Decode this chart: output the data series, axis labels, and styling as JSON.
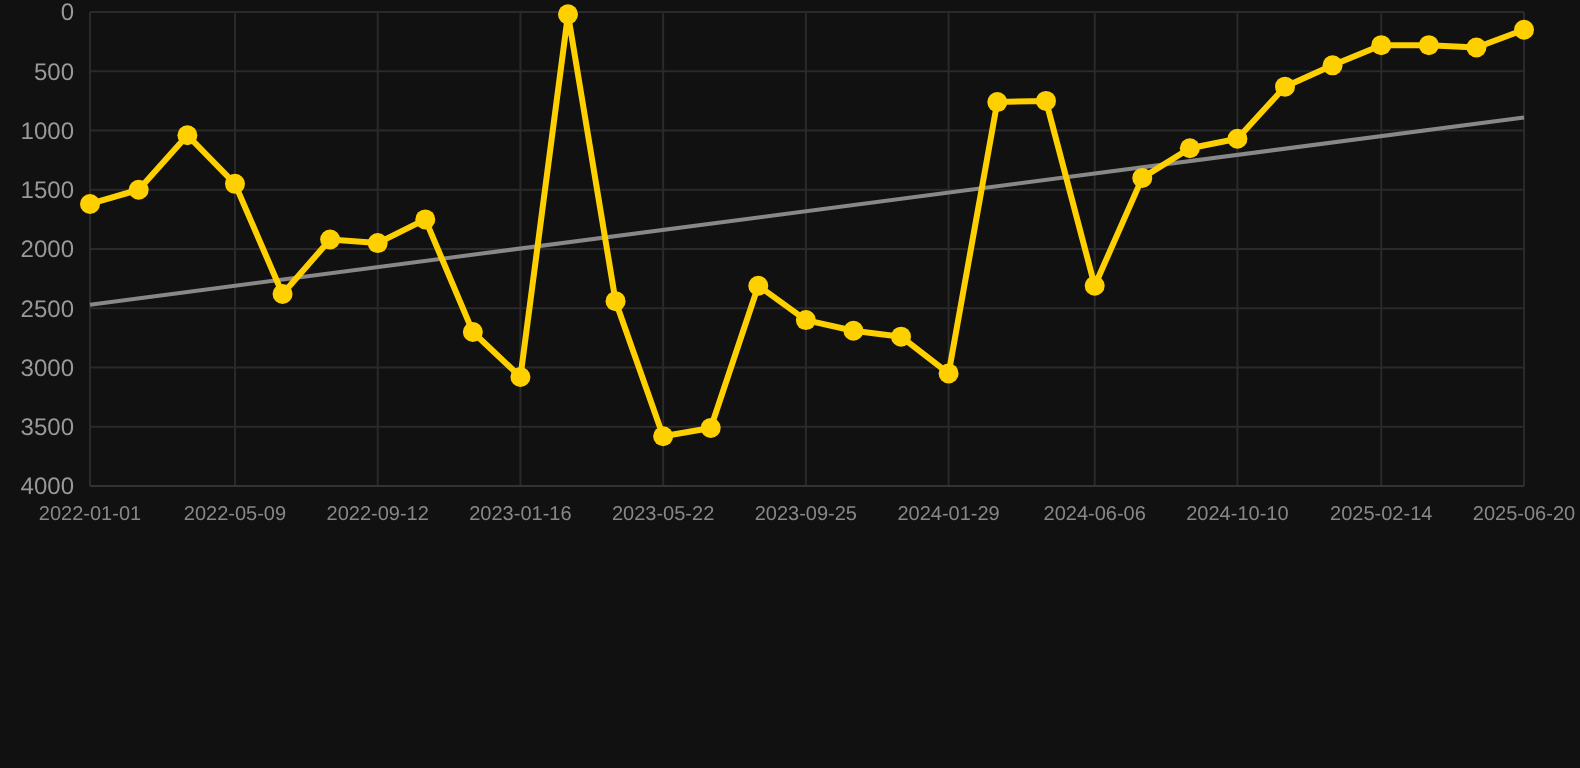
{
  "chart_data": {
    "type": "line",
    "x": [
      "2022-01-01",
      "2022-02-13",
      "2022-03-28",
      "2022-05-09",
      "2022-06-20",
      "2022-08-01",
      "2022-09-12",
      "2022-10-24",
      "2022-12-05",
      "2023-01-16",
      "2023-02-27",
      "2023-04-10",
      "2023-05-22",
      "2023-07-03",
      "2023-08-14",
      "2023-09-25",
      "2023-11-06",
      "2023-12-18",
      "2024-01-29",
      "2024-03-12",
      "2024-04-24",
      "2024-06-06",
      "2024-07-18",
      "2024-08-29",
      "2024-10-10",
      "2024-11-21",
      "2025-01-02",
      "2025-02-14",
      "2025-03-28",
      "2025-05-09",
      "2025-06-20"
    ],
    "series": [
      {
        "color": "#ffd000",
        "marker": "circle",
        "values": [
          1620,
          1500,
          1040,
          1450,
          2380,
          1920,
          1950,
          1750,
          2700,
          3080,
          20,
          2440,
          3580,
          3510,
          2310,
          2600,
          2690,
          2740,
          3050,
          760,
          750,
          2310,
          1400,
          1150,
          1070,
          630,
          450,
          280,
          280,
          300,
          150
        ]
      },
      {
        "type": "line",
        "color": "#888888",
        "marker": "none",
        "x": [
          "2022-01-01",
          "2025-06-20"
        ],
        "values": [
          2470,
          890
        ]
      }
    ],
    "xlim": [
      "2022-01-01",
      "2025-06-20"
    ],
    "xticks": [
      "2022-01-01",
      "2022-05-09",
      "2022-09-12",
      "2023-01-16",
      "2023-05-22",
      "2023-09-25",
      "2024-01-29",
      "2024-06-06",
      "2024-10-10",
      "2025-02-14",
      "2025-06-20"
    ],
    "ylim": [
      4000,
      0
    ],
    "yticks": [
      0,
      500,
      1000,
      1500,
      2000,
      2500,
      3000,
      3500,
      4000
    ],
    "grid": true
  }
}
